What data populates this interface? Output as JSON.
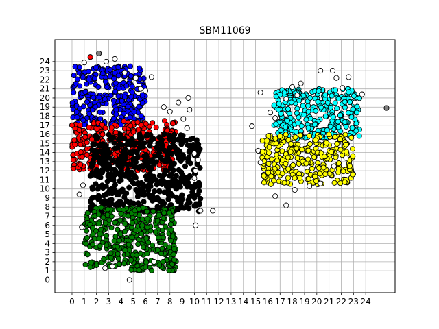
{
  "chart_data": {
    "type": "scatter",
    "title": "SBM11069",
    "xlabel": "",
    "ylabel": "",
    "xlim": [
      -1.4,
      26.4
    ],
    "ylim": [
      -1.4,
      26.4
    ],
    "x_ticks": [
      0,
      1,
      2,
      3,
      4,
      5,
      6,
      7,
      8,
      9,
      10,
      11,
      12,
      13,
      14,
      15,
      16,
      17,
      18,
      19,
      20,
      21,
      22,
      23,
      24
    ],
    "y_ticks": [
      0,
      1,
      2,
      3,
      4,
      5,
      6,
      7,
      8,
      9,
      10,
      11,
      12,
      13,
      14,
      15,
      16,
      17,
      18,
      19,
      20,
      21,
      22,
      23,
      24
    ],
    "grid": true,
    "legend": "none",
    "colors": {
      "blue": "#0000ff",
      "red": "#ff0000",
      "black": "#000000",
      "green": "#008000",
      "cyan": "#00ffff",
      "yellow": "#ffff00",
      "white": "#ffffff",
      "gray": "#808080"
    },
    "clusters": [
      {
        "color": "blue",
        "region": {
          "xmin": 0.0,
          "xmax": 6.0,
          "ymin": 17.0,
          "ymax": 23.5
        }
      },
      {
        "color": "red",
        "region": {
          "xmin": 0.0,
          "xmax": 8.5,
          "ymin": 12.0,
          "ymax": 17.5
        }
      },
      {
        "color": "black",
        "region": {
          "xmin": 1.5,
          "xmax": 10.5,
          "ymin": 7.5,
          "ymax": 16.0
        }
      },
      {
        "color": "green",
        "region": {
          "xmin": 1.0,
          "xmax": 8.5,
          "ymin": 1.0,
          "ymax": 8.0
        }
      },
      {
        "color": "cyan",
        "region": {
          "xmin": 16.5,
          "xmax": 23.5,
          "ymin": 15.5,
          "ymax": 21.0
        }
      },
      {
        "color": "yellow",
        "region": {
          "xmin": 15.5,
          "xmax": 23.0,
          "ymin": 10.5,
          "ymax": 16.0
        }
      }
    ],
    "points": [
      {
        "x": 1.5,
        "y": 24.5,
        "c": "red"
      },
      {
        "x": 2.2,
        "y": 24.9,
        "c": "gray"
      },
      {
        "x": 3.5,
        "y": 24.3,
        "c": "white"
      },
      {
        "x": 2.8,
        "y": 24.0,
        "c": "white"
      },
      {
        "x": 1.0,
        "y": 23.9,
        "c": "white"
      },
      {
        "x": 4.3,
        "y": 22.8,
        "c": "white"
      },
      {
        "x": 5.2,
        "y": 22.2,
        "c": "white"
      },
      {
        "x": 6.5,
        "y": 22.3,
        "c": "white"
      },
      {
        "x": 5.6,
        "y": 21.0,
        "c": "white"
      },
      {
        "x": 6.0,
        "y": 20.8,
        "c": "white"
      },
      {
        "x": 7.5,
        "y": 19.0,
        "c": "white"
      },
      {
        "x": 8.0,
        "y": 18.5,
        "c": "white"
      },
      {
        "x": 8.7,
        "y": 19.5,
        "c": "white"
      },
      {
        "x": 9.5,
        "y": 20.0,
        "c": "white"
      },
      {
        "x": 9.6,
        "y": 18.7,
        "c": "white"
      },
      {
        "x": 9.1,
        "y": 17.7,
        "c": "white"
      },
      {
        "x": 9.4,
        "y": 16.7,
        "c": "white"
      },
      {
        "x": 10.0,
        "y": 13.9,
        "c": "white"
      },
      {
        "x": 10.3,
        "y": 13.2,
        "c": "white"
      },
      {
        "x": 10.1,
        "y": 12.0,
        "c": "white"
      },
      {
        "x": 10.0,
        "y": 11.2,
        "c": "white"
      },
      {
        "x": 10.5,
        "y": 7.6,
        "c": "white"
      },
      {
        "x": 11.5,
        "y": 7.6,
        "c": "white"
      },
      {
        "x": 10.1,
        "y": 6.0,
        "c": "white"
      },
      {
        "x": 4.7,
        "y": 0.0,
        "c": "white"
      },
      {
        "x": 2.7,
        "y": 1.3,
        "c": "white"
      },
      {
        "x": 3.3,
        "y": 1.5,
        "c": "white"
      },
      {
        "x": 6.7,
        "y": 2.0,
        "c": "white"
      },
      {
        "x": 0.8,
        "y": 5.8,
        "c": "white"
      },
      {
        "x": 0.6,
        "y": 9.4,
        "c": "white"
      },
      {
        "x": 0.9,
        "y": 10.4,
        "c": "white"
      },
      {
        "x": 0.0,
        "y": 17.0,
        "c": "red"
      },
      {
        "x": 0.1,
        "y": 13.2,
        "c": "red"
      },
      {
        "x": 14.7,
        "y": 16.9,
        "c": "white"
      },
      {
        "x": 15.4,
        "y": 20.6,
        "c": "white"
      },
      {
        "x": 15.2,
        "y": 14.2,
        "c": "white"
      },
      {
        "x": 15.4,
        "y": 12.9,
        "c": "white"
      },
      {
        "x": 16.2,
        "y": 18.4,
        "c": "white"
      },
      {
        "x": 16.6,
        "y": 17.8,
        "c": "white"
      },
      {
        "x": 17.5,
        "y": 19.9,
        "c": "white"
      },
      {
        "x": 18.0,
        "y": 21.2,
        "c": "white"
      },
      {
        "x": 18.4,
        "y": 20.3,
        "c": "white"
      },
      {
        "x": 18.7,
        "y": 21.6,
        "c": "white"
      },
      {
        "x": 20.3,
        "y": 23.0,
        "c": "white"
      },
      {
        "x": 21.3,
        "y": 23.0,
        "c": "white"
      },
      {
        "x": 21.6,
        "y": 22.2,
        "c": "white"
      },
      {
        "x": 22.6,
        "y": 22.3,
        "c": "white"
      },
      {
        "x": 22.1,
        "y": 21.1,
        "c": "white"
      },
      {
        "x": 23.7,
        "y": 20.4,
        "c": "white"
      },
      {
        "x": 23.1,
        "y": 19.5,
        "c": "white"
      },
      {
        "x": 25.7,
        "y": 18.9,
        "c": "gray"
      },
      {
        "x": 16.6,
        "y": 9.2,
        "c": "white"
      },
      {
        "x": 17.5,
        "y": 8.2,
        "c": "white"
      },
      {
        "x": 18.2,
        "y": 9.9,
        "c": "white"
      },
      {
        "x": 19.4,
        "y": 10.3,
        "c": "white"
      },
      {
        "x": 20.3,
        "y": 10.6,
        "c": "white"
      },
      {
        "x": 21.4,
        "y": 12.5,
        "c": "white"
      },
      {
        "x": 22.4,
        "y": 13.4,
        "c": "white"
      }
    ]
  }
}
